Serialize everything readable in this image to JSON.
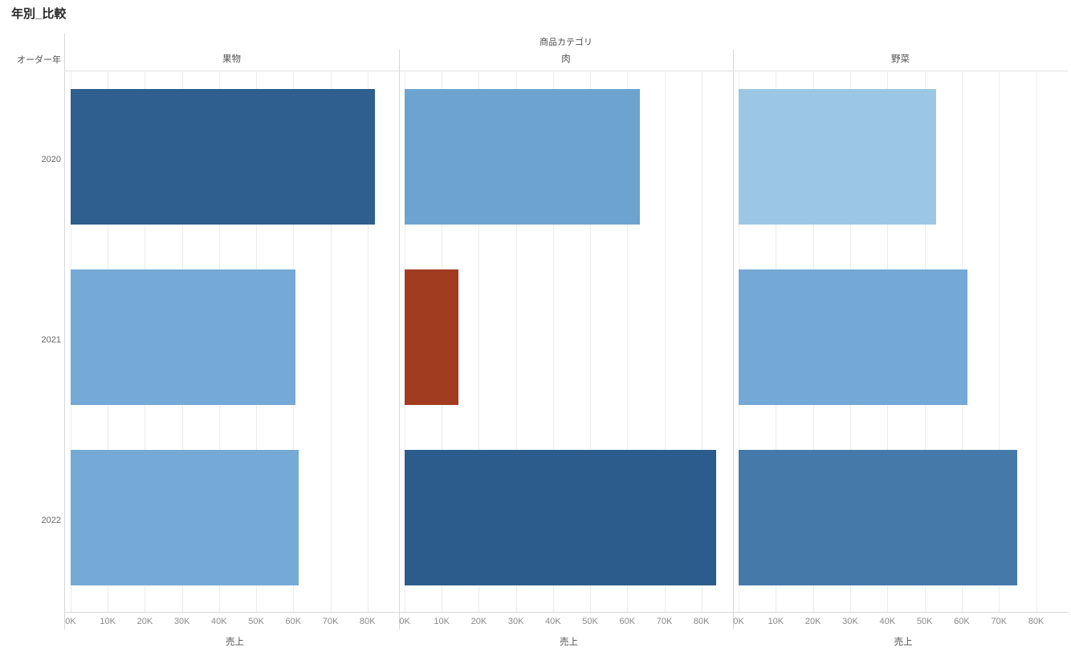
{
  "title": "年別_比較",
  "fields": {
    "column_field_label": "商品カテゴリ",
    "row_field_label": "オーダー年"
  },
  "chart_data": {
    "type": "bar",
    "orientation": "horizontal",
    "title": "年別_比較",
    "facet_field": "商品カテゴリ",
    "row_field": "オーダー年",
    "rows": [
      "2020",
      "2021",
      "2022"
    ],
    "xlabel": "売上",
    "x_range_k": [
      0,
      88.5
    ],
    "grid": true,
    "x_ticks": [
      {
        "k": 0,
        "label": "0K"
      },
      {
        "k": 10,
        "label": "10K"
      },
      {
        "k": 20,
        "label": "20K"
      },
      {
        "k": 30,
        "label": "30K"
      },
      {
        "k": 40,
        "label": "40K"
      },
      {
        "k": 50,
        "label": "50K"
      },
      {
        "k": 60,
        "label": "60K"
      },
      {
        "k": 70,
        "label": "70K"
      },
      {
        "k": 80,
        "label": "80K"
      }
    ],
    "facets": [
      {
        "category": "果物",
        "bars": [
          {
            "year": "2020",
            "value_k": 82,
            "color": "#2e5f8e"
          },
          {
            "year": "2021",
            "value_k": 60.5,
            "color": "#74aad5"
          },
          {
            "year": "2022",
            "value_k": 61.5,
            "color": "#74aad5"
          }
        ]
      },
      {
        "category": "肉",
        "bars": [
          {
            "year": "2020",
            "value_k": 63.5,
            "color": "#6da4cf"
          },
          {
            "year": "2021",
            "value_k": 14.5,
            "color": "#a23c21"
          },
          {
            "year": "2022",
            "value_k": 84,
            "color": "#2c5c8b"
          }
        ]
      },
      {
        "category": "野菜",
        "bars": [
          {
            "year": "2020",
            "value_k": 53,
            "color": "#9cc7e4"
          },
          {
            "year": "2021",
            "value_k": 61.5,
            "color": "#73a9d4"
          },
          {
            "year": "2022",
            "value_k": 75,
            "color": "#4579a9"
          }
        ]
      }
    ]
  }
}
